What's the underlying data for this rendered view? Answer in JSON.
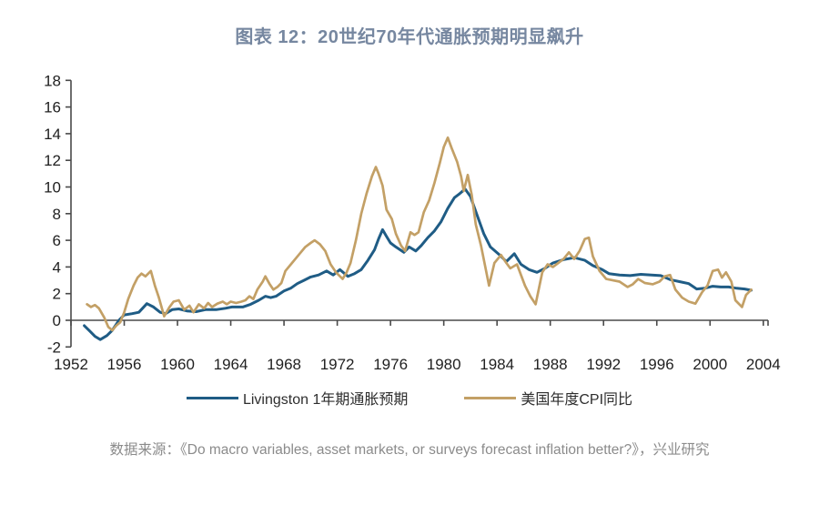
{
  "chart_data": {
    "type": "line",
    "title": "图表 12：20世纪70年代通胀预期明显飙升",
    "title_color": "#7687a0",
    "xlabel": "",
    "ylabel": "",
    "xlim": [
      1952,
      2004.4
    ],
    "ylim": [
      -2,
      18
    ],
    "x_ticks": [
      1952,
      1956,
      1960,
      1964,
      1968,
      1972,
      1976,
      1980,
      1984,
      1988,
      1992,
      1996,
      2000,
      2004
    ],
    "y_ticks": [
      -2,
      0,
      2,
      4,
      6,
      8,
      10,
      12,
      14,
      16,
      18
    ],
    "grid": false,
    "zero_baseline_axis": true,
    "axis_color": "#4a4a4a",
    "legend_position": "bottom",
    "series": [
      {
        "name": "Livingston 1年期通胀预期",
        "color": "#1f5c85",
        "stroke_width": 3,
        "points": [
          [
            1953.0,
            -0.4
          ],
          [
            1953.4,
            -0.8
          ],
          [
            1953.8,
            -1.2
          ],
          [
            1954.2,
            -1.45
          ],
          [
            1954.7,
            -1.15
          ],
          [
            1955.1,
            -0.75
          ],
          [
            1955.6,
            0.0
          ],
          [
            1956.0,
            0.4
          ],
          [
            1956.6,
            0.5
          ],
          [
            1957.1,
            0.6
          ],
          [
            1957.7,
            1.25
          ],
          [
            1958.2,
            1.0
          ],
          [
            1958.7,
            0.6
          ],
          [
            1959.1,
            0.5
          ],
          [
            1959.6,
            0.8
          ],
          [
            1960.1,
            0.85
          ],
          [
            1960.7,
            0.7
          ],
          [
            1961.4,
            0.65
          ],
          [
            1962.1,
            0.8
          ],
          [
            1962.9,
            0.8
          ],
          [
            1963.6,
            0.9
          ],
          [
            1964.1,
            1.0
          ],
          [
            1964.9,
            1.0
          ],
          [
            1965.5,
            1.2
          ],
          [
            1966.1,
            1.5
          ],
          [
            1966.6,
            1.8
          ],
          [
            1967.0,
            1.7
          ],
          [
            1967.4,
            1.8
          ],
          [
            1968.0,
            2.2
          ],
          [
            1968.5,
            2.4
          ],
          [
            1969.0,
            2.75
          ],
          [
            1969.5,
            3.0
          ],
          [
            1970.0,
            3.25
          ],
          [
            1970.6,
            3.4
          ],
          [
            1971.2,
            3.7
          ],
          [
            1971.7,
            3.4
          ],
          [
            1972.2,
            3.8
          ],
          [
            1972.8,
            3.3
          ],
          [
            1973.3,
            3.5
          ],
          [
            1973.8,
            3.8
          ],
          [
            1974.3,
            4.5
          ],
          [
            1974.8,
            5.3
          ],
          [
            1975.1,
            6.1
          ],
          [
            1975.4,
            6.8
          ],
          [
            1975.7,
            6.3
          ],
          [
            1976.0,
            5.8
          ],
          [
            1976.4,
            5.5
          ],
          [
            1977.0,
            5.1
          ],
          [
            1977.4,
            5.5
          ],
          [
            1977.9,
            5.2
          ],
          [
            1978.3,
            5.6
          ],
          [
            1978.8,
            6.2
          ],
          [
            1979.3,
            6.7
          ],
          [
            1979.8,
            7.4
          ],
          [
            1980.3,
            8.4
          ],
          [
            1980.8,
            9.2
          ],
          [
            1981.2,
            9.5
          ],
          [
            1981.6,
            9.85
          ],
          [
            1982.0,
            9.3
          ],
          [
            1982.5,
            7.9
          ],
          [
            1983.0,
            6.5
          ],
          [
            1983.5,
            5.5
          ],
          [
            1984.2,
            4.9
          ],
          [
            1984.7,
            4.4
          ],
          [
            1985.3,
            5.0
          ],
          [
            1985.8,
            4.2
          ],
          [
            1986.4,
            3.8
          ],
          [
            1987.0,
            3.6
          ],
          [
            1987.6,
            3.9
          ],
          [
            1988.2,
            4.3
          ],
          [
            1989.0,
            4.55
          ],
          [
            1989.8,
            4.7
          ],
          [
            1990.6,
            4.5
          ],
          [
            1991.2,
            4.1
          ],
          [
            1991.9,
            3.8
          ],
          [
            1992.4,
            3.5
          ],
          [
            1993.2,
            3.4
          ],
          [
            1994.0,
            3.35
          ],
          [
            1994.8,
            3.45
          ],
          [
            1995.6,
            3.4
          ],
          [
            1996.3,
            3.35
          ],
          [
            1997.0,
            3.05
          ],
          [
            1997.7,
            2.9
          ],
          [
            1998.4,
            2.75
          ],
          [
            1999.0,
            2.35
          ],
          [
            1999.6,
            2.4
          ],
          [
            2000.2,
            2.55
          ],
          [
            2000.8,
            2.5
          ],
          [
            2001.4,
            2.5
          ],
          [
            2002.0,
            2.4
          ],
          [
            2002.6,
            2.35
          ],
          [
            2003.1,
            2.25
          ]
        ]
      },
      {
        "name": "美国年度CPI同比",
        "color": "#c3a066",
        "stroke_width": 2.7,
        "points": [
          [
            1953.2,
            1.2
          ],
          [
            1953.5,
            1.0
          ],
          [
            1953.8,
            1.15
          ],
          [
            1954.1,
            0.9
          ],
          [
            1954.5,
            0.2
          ],
          [
            1954.8,
            -0.5
          ],
          [
            1955.1,
            -0.75
          ],
          [
            1955.4,
            -0.4
          ],
          [
            1955.7,
            -0.15
          ],
          [
            1956.0,
            0.6
          ],
          [
            1956.3,
            1.6
          ],
          [
            1956.7,
            2.6
          ],
          [
            1957.0,
            3.2
          ],
          [
            1957.3,
            3.5
          ],
          [
            1957.6,
            3.3
          ],
          [
            1958.0,
            3.7
          ],
          [
            1958.3,
            2.6
          ],
          [
            1958.6,
            1.7
          ],
          [
            1959.0,
            0.3
          ],
          [
            1959.4,
            1.0
          ],
          [
            1959.7,
            1.4
          ],
          [
            1960.1,
            1.5
          ],
          [
            1960.5,
            0.8
          ],
          [
            1960.9,
            1.1
          ],
          [
            1961.2,
            0.6
          ],
          [
            1961.6,
            1.2
          ],
          [
            1962.0,
            0.9
          ],
          [
            1962.3,
            1.3
          ],
          [
            1962.6,
            1.0
          ],
          [
            1963.0,
            1.25
          ],
          [
            1963.4,
            1.4
          ],
          [
            1963.7,
            1.2
          ],
          [
            1964.0,
            1.4
          ],
          [
            1964.4,
            1.3
          ],
          [
            1964.8,
            1.4
          ],
          [
            1965.1,
            1.5
          ],
          [
            1965.4,
            1.8
          ],
          [
            1965.7,
            1.6
          ],
          [
            1966.0,
            2.3
          ],
          [
            1966.4,
            2.9
          ],
          [
            1966.6,
            3.3
          ],
          [
            1966.9,
            2.75
          ],
          [
            1967.2,
            2.3
          ],
          [
            1967.5,
            2.5
          ],
          [
            1967.8,
            2.8
          ],
          [
            1968.1,
            3.7
          ],
          [
            1968.6,
            4.3
          ],
          [
            1969.1,
            4.9
          ],
          [
            1969.6,
            5.5
          ],
          [
            1970.0,
            5.8
          ],
          [
            1970.3,
            6.0
          ],
          [
            1970.7,
            5.7
          ],
          [
            1971.1,
            5.2
          ],
          [
            1971.5,
            4.2
          ],
          [
            1971.9,
            3.6
          ],
          [
            1972.4,
            3.1
          ],
          [
            1972.7,
            3.6
          ],
          [
            1973.0,
            4.3
          ],
          [
            1973.4,
            6.0
          ],
          [
            1973.8,
            8.0
          ],
          [
            1974.2,
            9.5
          ],
          [
            1974.6,
            10.8
          ],
          [
            1974.9,
            11.5
          ],
          [
            1975.1,
            11.0
          ],
          [
            1975.4,
            10.1
          ],
          [
            1975.7,
            8.3
          ],
          [
            1976.1,
            7.6
          ],
          [
            1976.4,
            6.5
          ],
          [
            1976.8,
            5.6
          ],
          [
            1977.1,
            5.2
          ],
          [
            1977.5,
            6.6
          ],
          [
            1977.8,
            6.4
          ],
          [
            1978.1,
            6.6
          ],
          [
            1978.5,
            8.1
          ],
          [
            1978.9,
            9.0
          ],
          [
            1979.3,
            10.3
          ],
          [
            1979.7,
            11.8
          ],
          [
            1980.0,
            13.0
          ],
          [
            1980.3,
            13.7
          ],
          [
            1980.6,
            12.9
          ],
          [
            1981.0,
            11.9
          ],
          [
            1981.3,
            10.8
          ],
          [
            1981.5,
            9.7
          ],
          [
            1981.8,
            10.9
          ],
          [
            1982.1,
            9.4
          ],
          [
            1982.4,
            7.2
          ],
          [
            1982.8,
            5.6
          ],
          [
            1983.1,
            4.1
          ],
          [
            1983.4,
            2.6
          ],
          [
            1983.8,
            4.3
          ],
          [
            1984.3,
            4.9
          ],
          [
            1984.7,
            4.3
          ],
          [
            1985.0,
            3.9
          ],
          [
            1985.5,
            4.2
          ],
          [
            1986.1,
            2.6
          ],
          [
            1986.5,
            1.8
          ],
          [
            1986.9,
            1.2
          ],
          [
            1987.4,
            3.6
          ],
          [
            1987.8,
            4.2
          ],
          [
            1988.2,
            4.0
          ],
          [
            1988.6,
            4.3
          ],
          [
            1989.0,
            4.6
          ],
          [
            1989.4,
            5.1
          ],
          [
            1989.8,
            4.6
          ],
          [
            1990.2,
            5.2
          ],
          [
            1990.6,
            6.1
          ],
          [
            1990.9,
            6.2
          ],
          [
            1991.2,
            4.8
          ],
          [
            1991.7,
            3.7
          ],
          [
            1992.2,
            3.1
          ],
          [
            1992.7,
            3.0
          ],
          [
            1993.2,
            2.9
          ],
          [
            1993.8,
            2.5
          ],
          [
            1994.2,
            2.7
          ],
          [
            1994.6,
            3.1
          ],
          [
            1995.1,
            2.8
          ],
          [
            1995.7,
            2.7
          ],
          [
            1996.2,
            2.9
          ],
          [
            1996.6,
            3.3
          ],
          [
            1997.0,
            3.4
          ],
          [
            1997.4,
            2.3
          ],
          [
            1997.9,
            1.7
          ],
          [
            1998.4,
            1.4
          ],
          [
            1998.9,
            1.25
          ],
          [
            1999.4,
            2.1
          ],
          [
            1999.8,
            2.6
          ],
          [
            2000.2,
            3.7
          ],
          [
            2000.6,
            3.8
          ],
          [
            2000.9,
            3.2
          ],
          [
            2001.2,
            3.6
          ],
          [
            2001.6,
            2.9
          ],
          [
            2001.9,
            1.5
          ],
          [
            2002.4,
            1.0
          ],
          [
            2002.7,
            1.9
          ],
          [
            2003.1,
            2.3
          ]
        ]
      }
    ]
  },
  "source": {
    "text": "数据来源：《Do macro variables, asset markets, or surveys forecast inflation better?》，兴业研究"
  }
}
